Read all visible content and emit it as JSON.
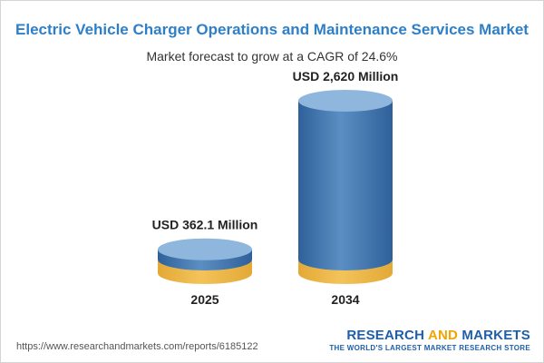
{
  "chart_data": {
    "type": "bar",
    "title": "Electric Vehicle Charger Operations and Maintenance Services Market",
    "subtitle": "Market forecast to grow at a CAGR of 24.6%",
    "categories": [
      "2025",
      "2034"
    ],
    "values": [
      362.1,
      2620
    ],
    "value_labels": [
      "USD 362.1 Million",
      "USD 2,620 Million"
    ],
    "unit": "USD Million",
    "xlabel": "",
    "ylabel": "",
    "grid": false,
    "legend": "none",
    "colors": {
      "base": "#f3c35a",
      "base_dark": "#e3a936",
      "base_top": "#fde7a9",
      "bar": "#5b8fc3",
      "bar_dark": "#2f609a",
      "bar_top": "#8fb6dd"
    }
  },
  "source_url": "https://www.researchandmarkets.com/reports/6185122",
  "logo": {
    "word1": "RESEARCH",
    "word2": "AND",
    "word3": "MARKETS",
    "tagline": "THE WORLD'S LARGEST MARKET RESEARCH STORE"
  }
}
